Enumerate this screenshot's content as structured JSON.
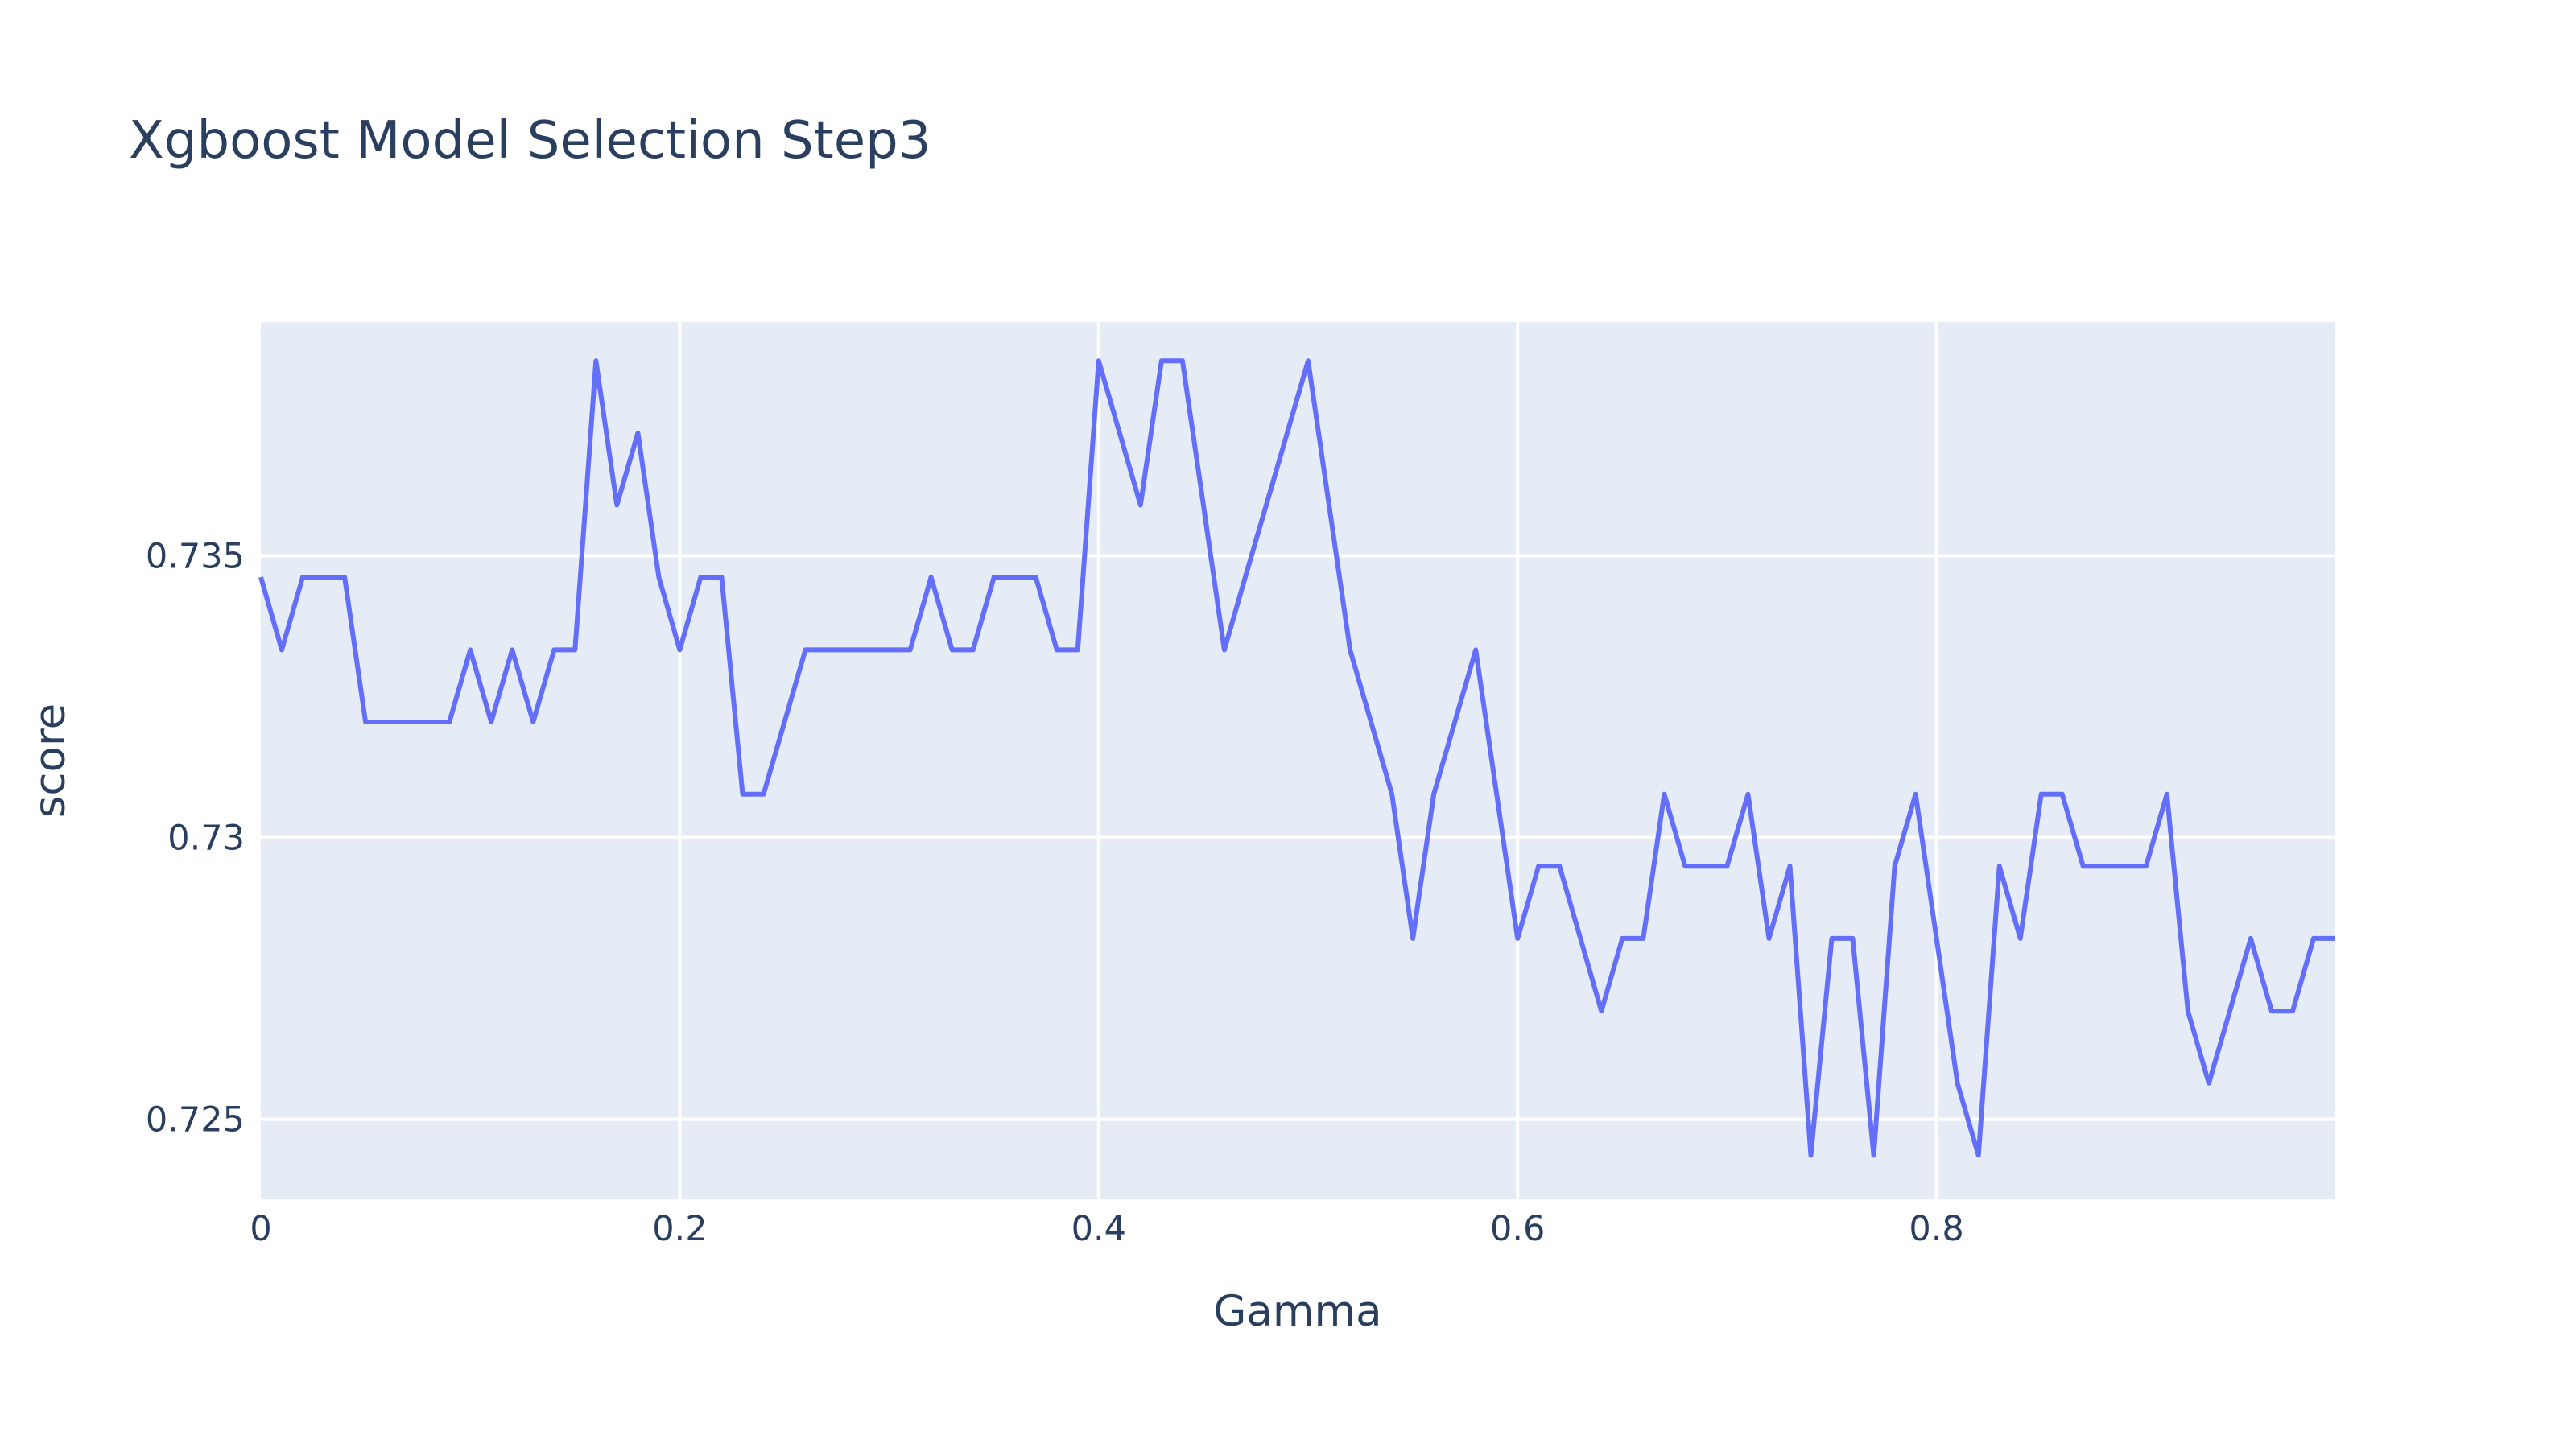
{
  "chart_data": {
    "type": "line",
    "title": "Xgboost Model Selection Step3",
    "xlabel": "Gamma",
    "ylabel": "score",
    "xlim": [
      0,
      0.99
    ],
    "ylim": [
      0.72358,
      0.73915
    ],
    "x_ticks": [
      0,
      0.2,
      0.4,
      0.6,
      0.8
    ],
    "x_tick_labels": [
      "0",
      "0.2",
      "0.4",
      "0.6",
      "0.8"
    ],
    "y_ticks": [
      0.725,
      0.73,
      0.735
    ],
    "y_tick_labels": [
      "0.725",
      "0.73",
      "0.735"
    ],
    "grid": true,
    "background_color": "#e5ecf6",
    "grid_color": "#ffffff",
    "text_color": "#2a3f5f",
    "series": [
      {
        "color": "#636efa",
        "x": [
          0,
          0.01,
          0.02,
          0.03,
          0.04,
          0.05,
          0.06,
          0.07,
          0.08,
          0.09,
          0.1,
          0.11,
          0.12,
          0.13,
          0.14,
          0.15,
          0.16,
          0.17,
          0.18,
          0.19,
          0.2,
          0.21,
          0.22,
          0.23,
          0.24,
          0.25,
          0.26,
          0.27,
          0.28,
          0.29,
          0.3,
          0.31,
          0.32,
          0.33,
          0.34,
          0.35,
          0.36,
          0.37,
          0.38,
          0.39,
          0.4,
          0.41,
          0.42,
          0.43,
          0.44,
          0.45,
          0.46,
          0.47,
          0.48,
          0.49,
          0.5,
          0.51,
          0.52,
          0.53,
          0.54,
          0.55,
          0.56,
          0.57,
          0.58,
          0.59,
          0.6,
          0.61,
          0.62,
          0.63,
          0.64,
          0.65,
          0.66,
          0.67,
          0.68,
          0.69,
          0.7,
          0.71,
          0.72,
          0.73,
          0.74,
          0.75,
          0.76,
          0.77,
          0.78,
          0.79,
          0.8,
          0.81,
          0.82,
          0.83,
          0.84,
          0.85,
          0.86,
          0.87,
          0.88,
          0.89,
          0.9,
          0.91,
          0.92,
          0.93,
          0.94,
          0.95,
          0.96,
          0.97,
          0.98,
          0.99
        ],
        "y": [
          0.73462,
          0.73333,
          0.73462,
          0.73462,
          0.73462,
          0.73205,
          0.73205,
          0.73205,
          0.73205,
          0.73205,
          0.73333,
          0.73205,
          0.73333,
          0.73205,
          0.73333,
          0.73333,
          0.73846,
          0.7359,
          0.73718,
          0.73462,
          0.73333,
          0.73462,
          0.73462,
          0.73077,
          0.73077,
          0.73205,
          0.73333,
          0.73333,
          0.73333,
          0.73333,
          0.73333,
          0.73333,
          0.73462,
          0.73333,
          0.73333,
          0.73462,
          0.73462,
          0.73462,
          0.73333,
          0.73333,
          0.73846,
          0.73718,
          0.7359,
          0.73846,
          0.73846,
          0.7359,
          0.73333,
          0.73462,
          0.7359,
          0.73718,
          0.73846,
          0.7359,
          0.73333,
          0.73205,
          0.73077,
          0.72821,
          0.73077,
          0.73205,
          0.73333,
          0.73077,
          0.72821,
          0.72949,
          0.72949,
          0.72821,
          0.72692,
          0.72821,
          0.72821,
          0.73077,
          0.72949,
          0.72949,
          0.72949,
          0.73077,
          0.72821,
          0.72949,
          0.72436,
          0.72821,
          0.72821,
          0.72436,
          0.72949,
          0.73077,
          0.72821,
          0.72564,
          0.72436,
          0.72949,
          0.72821,
          0.73077,
          0.73077,
          0.72949,
          0.72949,
          0.72949,
          0.72949,
          0.73077,
          0.72692,
          0.72564,
          0.72692,
          0.72821,
          0.72692,
          0.72692,
          0.72821,
          0.72821
        ]
      }
    ]
  }
}
